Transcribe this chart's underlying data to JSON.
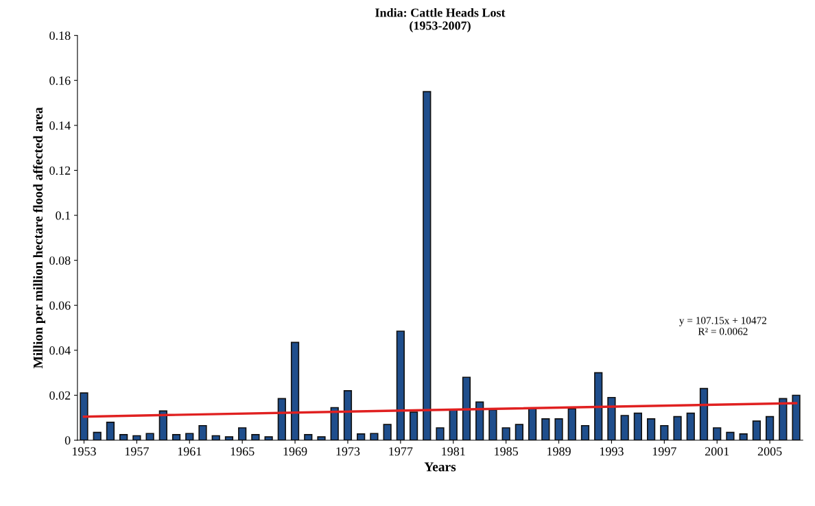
{
  "chart_data": {
    "type": "bar",
    "title": "India: Cattle Heads Lost\n(1953-2007)",
    "xlabel": "Years",
    "ylabel": "Million per million hectare flood affected area",
    "x": [
      1953,
      1954,
      1955,
      1956,
      1957,
      1958,
      1959,
      1960,
      1961,
      1962,
      1963,
      1964,
      1965,
      1966,
      1967,
      1968,
      1969,
      1970,
      1971,
      1972,
      1973,
      1974,
      1975,
      1976,
      1977,
      1978,
      1979,
      1980,
      1981,
      1982,
      1983,
      1984,
      1985,
      1986,
      1987,
      1988,
      1989,
      1990,
      1991,
      1992,
      1993,
      1994,
      1995,
      1996,
      1997,
      1998,
      1999,
      2000,
      2001,
      2002,
      2003,
      2004,
      2005,
      2006,
      2007
    ],
    "series": [
      {
        "color": "#1f4e8c",
        "values": [
          0.021,
          0.0035,
          0.008,
          0.0025,
          0.002,
          0.003,
          0.013,
          0.0025,
          0.003,
          0.0065,
          0.002,
          0.0015,
          0.0055,
          0.0025,
          0.0015,
          0.0185,
          0.0435,
          0.0025,
          0.0015,
          0.0145,
          0.022,
          0.0028,
          0.003,
          0.007,
          0.0485,
          0.0125,
          0.155,
          0.0055,
          0.0135,
          0.028,
          0.017,
          0.0135,
          0.0055,
          0.007,
          0.014,
          0.0095,
          0.0095,
          0.014,
          0.0065,
          0.03,
          0.019,
          0.011,
          0.012,
          0.0095,
          0.0065,
          0.0105,
          0.012,
          0.023,
          0.0055,
          0.0035,
          0.0028,
          0.0085,
          0.0105,
          0.0185,
          0.02
        ]
      },
      {
        "type": "line",
        "color": "#e02020",
        "x": [
          1953,
          2007
        ],
        "values": [
          0.0105,
          0.0165
        ]
      }
    ],
    "xlim": [
      1952.5,
      2007.5
    ],
    "xticks": [
      1953,
      1957,
      1961,
      1965,
      1969,
      1973,
      1977,
      1981,
      1985,
      1989,
      1993,
      1997,
      2001,
      2005
    ],
    "ylim": [
      0,
      0.18
    ],
    "yticks": [
      0,
      0.02,
      0.04,
      0.06,
      0.08,
      0.1,
      0.12,
      0.14,
      0.16,
      0.18
    ],
    "annotations": [
      "y = 107.15x + 10472\nR² = 0.0062"
    ],
    "grid": false,
    "legend": false
  }
}
